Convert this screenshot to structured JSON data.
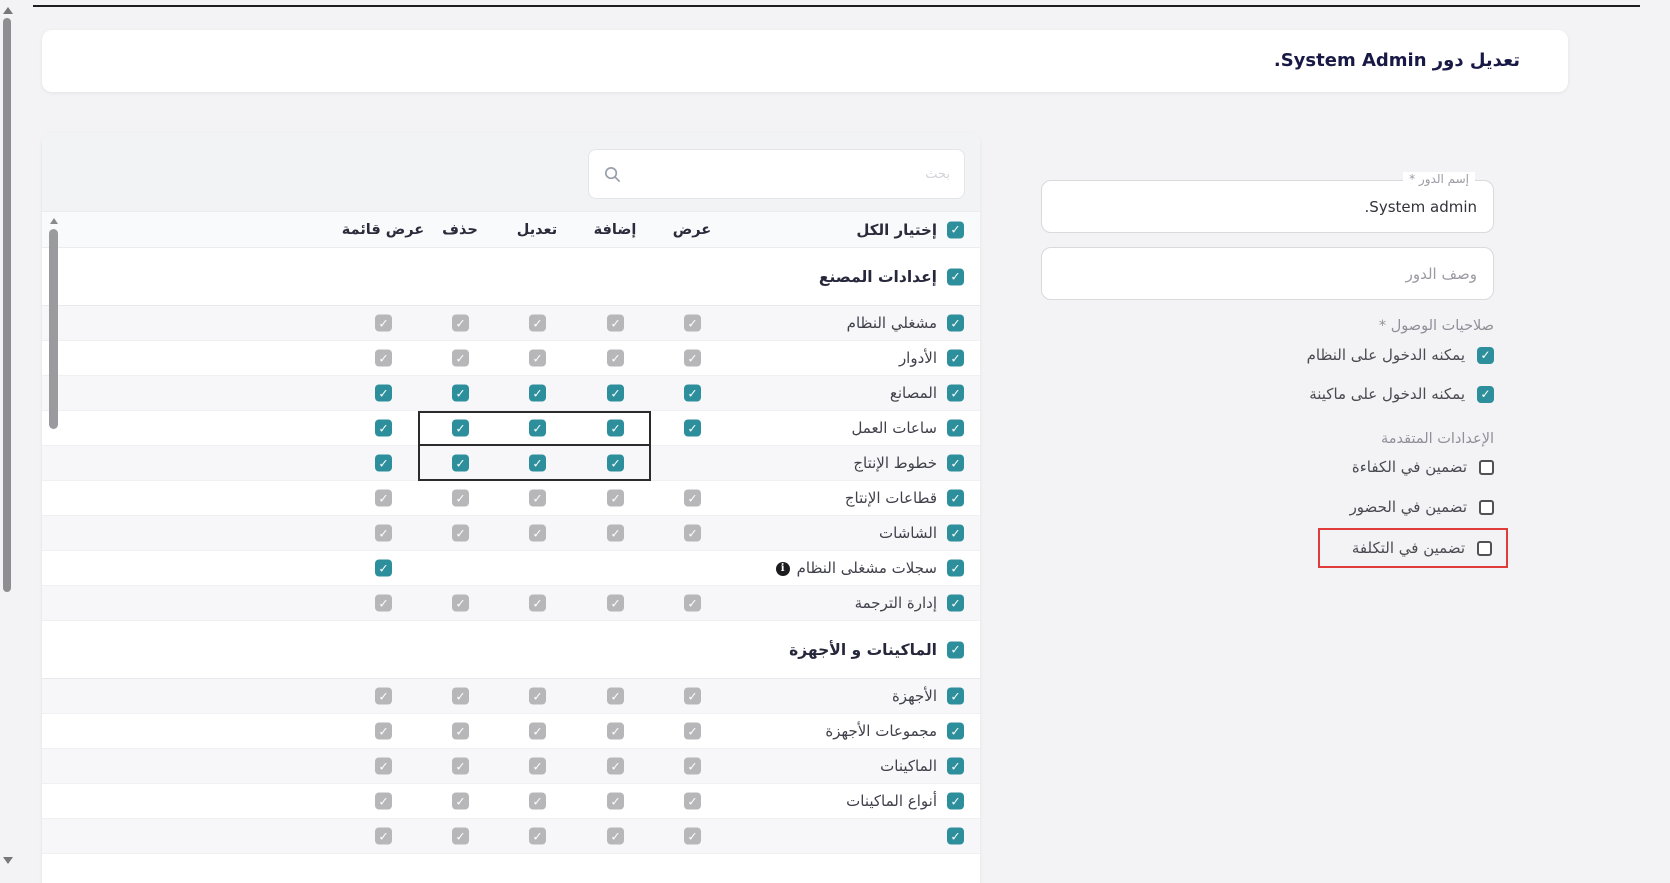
{
  "header": {
    "title": "تعديل دور System Admin."
  },
  "form": {
    "name_label": "إسم الدور *",
    "name_value": "System admin.",
    "desc_placeholder": "وصف الدور",
    "access_label": "صلاحيات الوصول *",
    "access_options": [
      {
        "label": "يمكنه الدخول على النظام",
        "checked": true
      },
      {
        "label": "يمكنه الدخول على ماكينة",
        "checked": true
      }
    ],
    "advanced_label": "الإعدادات المتقدمة",
    "advanced_options": [
      {
        "label": "تضمين في الكفاءة",
        "checked": false
      },
      {
        "label": "تضمين في الحضور",
        "checked": false
      },
      {
        "label": "تضمين في التكلفة",
        "checked": false,
        "highlighted": true
      }
    ]
  },
  "table": {
    "search_placeholder": "بحث",
    "select_all_checked": true,
    "columns": [
      "إختيار الكل",
      "عرض",
      "إضافة",
      "تعديل",
      "حذف",
      "عرض قائمة"
    ],
    "rows": [
      {
        "type": "section",
        "label": "إعدادات المصنع",
        "select": "teal",
        "shade": "white"
      },
      {
        "type": "item",
        "label": "مشغلي النظام",
        "select": "teal",
        "shade": "light",
        "cells": {
          "view": "gray",
          "add": "gray",
          "edit": "gray",
          "delete": "gray",
          "list": "gray"
        }
      },
      {
        "type": "item",
        "label": "الأدوار",
        "select": "teal",
        "shade": "white",
        "cells": {
          "view": "gray",
          "add": "gray",
          "edit": "gray",
          "delete": "gray",
          "list": "gray"
        }
      },
      {
        "type": "item",
        "label": "المصانع",
        "select": "teal",
        "shade": "light",
        "cells": {
          "view": "teal",
          "add": "teal",
          "edit": "teal",
          "delete": "teal",
          "list": "teal"
        }
      },
      {
        "type": "item",
        "label": "ساعات العمل",
        "select": "teal",
        "shade": "white",
        "boxed": true,
        "cells": {
          "view": "teal",
          "add": "teal",
          "edit": "teal",
          "delete": "teal",
          "list": "teal"
        }
      },
      {
        "type": "item",
        "label": "خطوط الإنتاج",
        "select": "teal",
        "shade": "light",
        "boxed": true,
        "cells": {
          "view": "none",
          "add": "teal",
          "edit": "teal",
          "delete": "teal",
          "list": "teal"
        }
      },
      {
        "type": "item",
        "label": "قطاعات الإنتاج",
        "select": "teal",
        "shade": "white",
        "cells": {
          "view": "gray",
          "add": "gray",
          "edit": "gray",
          "delete": "gray",
          "list": "gray"
        }
      },
      {
        "type": "item",
        "label": "الشاشات",
        "select": "teal",
        "shade": "light",
        "cells": {
          "view": "gray",
          "add": "gray",
          "edit": "gray",
          "delete": "gray",
          "list": "gray"
        }
      },
      {
        "type": "item",
        "label": "سجلات مشغلى النظام",
        "select": "teal",
        "shade": "white",
        "info": true,
        "cells": {
          "view": "none",
          "add": "none",
          "edit": "none",
          "delete": "none",
          "list": "teal"
        }
      },
      {
        "type": "item",
        "label": "إدارة الترجمة",
        "select": "teal",
        "shade": "light",
        "cells": {
          "view": "gray",
          "add": "gray",
          "edit": "gray",
          "delete": "gray",
          "list": "gray"
        }
      },
      {
        "type": "section",
        "label": "الماكينات و الأجهزة",
        "select": "teal",
        "shade": "white"
      },
      {
        "type": "item",
        "label": "الأجهزة",
        "select": "teal",
        "shade": "light",
        "cells": {
          "view": "gray",
          "add": "gray",
          "edit": "gray",
          "delete": "gray",
          "list": "gray"
        }
      },
      {
        "type": "item",
        "label": "مجموعات الأجهزة",
        "select": "teal",
        "shade": "white",
        "cells": {
          "view": "gray",
          "add": "gray",
          "edit": "gray",
          "delete": "gray",
          "list": "gray"
        }
      },
      {
        "type": "item",
        "label": "الماكينات",
        "select": "teal",
        "shade": "light",
        "cells": {
          "view": "gray",
          "add": "gray",
          "edit": "gray",
          "delete": "gray",
          "list": "gray"
        }
      },
      {
        "type": "item",
        "label": "أنواع الماكينات",
        "select": "teal",
        "shade": "white",
        "cells": {
          "view": "gray",
          "add": "gray",
          "edit": "gray",
          "delete": "gray",
          "list": "gray"
        }
      },
      {
        "type": "item",
        "label": "",
        "select": "teal",
        "shade": "light",
        "partial": true,
        "cells": {
          "view": "gray",
          "add": "gray",
          "edit": "gray",
          "delete": "gray",
          "list": "gray"
        }
      }
    ]
  },
  "colors": {
    "teal": "#2e8f9c",
    "gray_check": "#b7b7ba",
    "highlight_red": "#e03c3c",
    "highlight_black": "#2b2b2b",
    "title_navy": "#191946"
  }
}
